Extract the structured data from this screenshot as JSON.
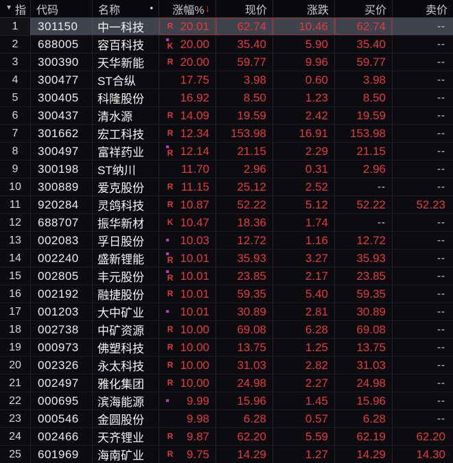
{
  "colors": {
    "up_red": "#e23a3e",
    "event_dot_purple": "#cc2fd4",
    "selected_row_bg": "#3e434e",
    "background": "#0b0b0f"
  },
  "header": {
    "index_sort_triangle": "▼",
    "index_label": "指",
    "code_label": "代码",
    "name_label": "名称",
    "name_marker": "•",
    "pct_label": "涨幅%",
    "pct_sort_arrow": "↓",
    "price_label": "现价",
    "change_label": "涨跌",
    "buy_label": "买价",
    "sell_label": "卖价"
  },
  "rows": [
    {
      "idx": "1",
      "code": "301150",
      "name": "中一科技",
      "badge": "R",
      "dot": false,
      "pct": "20.01",
      "price": "62.74",
      "chg": "10.46",
      "buy": "62.74",
      "sell": "--",
      "selected": true,
      "flash": true
    },
    {
      "idx": "2",
      "code": "688005",
      "name": "容百科技",
      "badge": "K",
      "dot": true,
      "pct": "20.00",
      "price": "35.40",
      "chg": "5.90",
      "buy": "35.40",
      "sell": "--"
    },
    {
      "idx": "3",
      "code": "300390",
      "name": "天华新能",
      "badge": "R",
      "dot": false,
      "pct": "20.00",
      "price": "59.77",
      "chg": "9.96",
      "buy": "59.77",
      "sell": "--"
    },
    {
      "idx": "4",
      "code": "300477",
      "name": "ST合纵",
      "badge": "",
      "dot": false,
      "pct": "17.75",
      "price": "3.98",
      "chg": "0.60",
      "buy": "3.98",
      "sell": "--"
    },
    {
      "idx": "5",
      "code": "300405",
      "name": "科隆股份",
      "badge": "",
      "dot": false,
      "pct": "16.92",
      "price": "8.50",
      "chg": "1.23",
      "buy": "8.50",
      "sell": "--"
    },
    {
      "idx": "6",
      "code": "300437",
      "name": "清水源",
      "badge": "R",
      "dot": false,
      "pct": "14.09",
      "price": "19.59",
      "chg": "2.42",
      "buy": "19.59",
      "sell": "--"
    },
    {
      "idx": "7",
      "code": "301662",
      "name": "宏工科技",
      "badge": "R",
      "dot": false,
      "pct": "12.34",
      "price": "153.98",
      "chg": "16.91",
      "buy": "153.98",
      "sell": "--"
    },
    {
      "idx": "8",
      "code": "300497",
      "name": "富祥药业",
      "badge": "R",
      "dot": true,
      "pct": "12.14",
      "price": "21.15",
      "chg": "2.29",
      "buy": "21.15",
      "sell": "--"
    },
    {
      "idx": "9",
      "code": "300198",
      "name": "ST纳川",
      "badge": "",
      "dot": false,
      "pct": "11.70",
      "price": "2.96",
      "chg": "0.31",
      "buy": "2.96",
      "sell": "--"
    },
    {
      "idx": "10",
      "code": "300889",
      "name": "爱克股份",
      "badge": "R",
      "dot": false,
      "pct": "11.15",
      "price": "25.12",
      "chg": "2.52",
      "buy": "--",
      "sell": "--"
    },
    {
      "idx": "11",
      "code": "920284",
      "name": "灵鸽科技",
      "badge": "R",
      "dot": false,
      "pct": "10.87",
      "price": "52.22",
      "chg": "5.12",
      "buy": "52.22",
      "sell": "52.23"
    },
    {
      "idx": "12",
      "code": "688707",
      "name": "振华新材",
      "badge": "K",
      "dot": false,
      "pct": "10.47",
      "price": "18.36",
      "chg": "1.74",
      "buy": "--",
      "sell": "--"
    },
    {
      "idx": "13",
      "code": "002083",
      "name": "孚日股份",
      "badge": "",
      "dot": true,
      "pct": "10.03",
      "price": "12.72",
      "chg": "1.16",
      "buy": "12.72",
      "sell": "--"
    },
    {
      "idx": "14",
      "code": "002240",
      "name": "盛新锂能",
      "badge": "R",
      "dot": true,
      "pct": "10.01",
      "price": "35.93",
      "chg": "3.27",
      "buy": "35.93",
      "sell": "--"
    },
    {
      "idx": "15",
      "code": "002805",
      "name": "丰元股份",
      "badge": "R",
      "dot": true,
      "pct": "10.01",
      "price": "23.85",
      "chg": "2.17",
      "buy": "23.85",
      "sell": "--"
    },
    {
      "idx": "16",
      "code": "002192",
      "name": "融捷股份",
      "badge": "R",
      "dot": false,
      "pct": "10.01",
      "price": "59.35",
      "chg": "5.40",
      "buy": "59.35",
      "sell": "--"
    },
    {
      "idx": "17",
      "code": "001203",
      "name": "大中矿业",
      "badge": "",
      "dot": true,
      "pct": "10.01",
      "price": "30.89",
      "chg": "2.81",
      "buy": "30.89",
      "sell": "--"
    },
    {
      "idx": "18",
      "code": "002738",
      "name": "中矿资源",
      "badge": "R",
      "dot": false,
      "pct": "10.00",
      "price": "69.08",
      "chg": "6.28",
      "buy": "69.08",
      "sell": "--"
    },
    {
      "idx": "19",
      "code": "000973",
      "name": "佛塑科技",
      "badge": "R",
      "dot": false,
      "pct": "10.00",
      "price": "13.75",
      "chg": "1.25",
      "buy": "13.75",
      "sell": "--"
    },
    {
      "idx": "20",
      "code": "002326",
      "name": "永太科技",
      "badge": "R",
      "dot": false,
      "pct": "10.00",
      "price": "31.03",
      "chg": "2.82",
      "buy": "31.03",
      "sell": "--"
    },
    {
      "idx": "21",
      "code": "002497",
      "name": "雅化集团",
      "badge": "R",
      "dot": false,
      "pct": "10.00",
      "price": "24.98",
      "chg": "2.27",
      "buy": "24.98",
      "sell": "--"
    },
    {
      "idx": "22",
      "code": "000695",
      "name": "滨海能源",
      "badge": "",
      "dot": true,
      "pct": "9.99",
      "price": "15.96",
      "chg": "1.45",
      "buy": "15.96",
      "sell": "--"
    },
    {
      "idx": "23",
      "code": "000546",
      "name": "金圆股份",
      "badge": "",
      "dot": false,
      "pct": "9.98",
      "price": "6.28",
      "chg": "0.57",
      "buy": "6.28",
      "sell": "--"
    },
    {
      "idx": "24",
      "code": "002466",
      "name": "天齐锂业",
      "badge": "R",
      "dot": false,
      "pct": "9.87",
      "price": "62.20",
      "chg": "5.59",
      "buy": "62.19",
      "sell": "62.20"
    },
    {
      "idx": "25",
      "code": "601969",
      "name": "海南矿业",
      "badge": "R",
      "dot": false,
      "pct": "9.75",
      "price": "14.29",
      "chg": "1.27",
      "buy": "14.29",
      "sell": "14.30"
    }
  ]
}
